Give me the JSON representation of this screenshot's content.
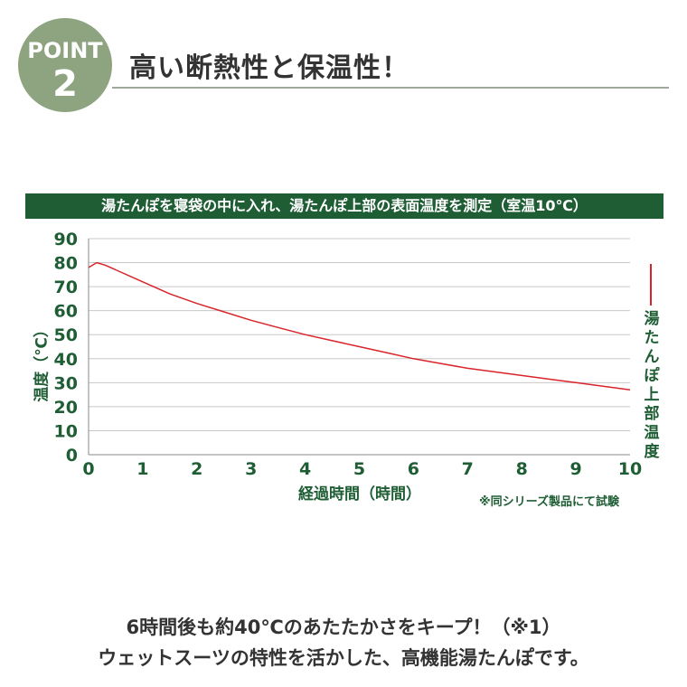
{
  "badge": {
    "label": "POINT",
    "number": "2"
  },
  "title": "高い断熱性と保温性！",
  "banner": "湯たんぽを寝袋の中に入れ、湯たんぽ上部の表面温度を測定（室温10℃）",
  "colors": {
    "green": "#1f5e35",
    "badge": "#8ea37f",
    "line": "#d9242a"
  },
  "chart_data": {
    "type": "line",
    "xlabel": "経過時間（時間）",
    "ylabel": "温度（℃）",
    "xlim": [
      0,
      10
    ],
    "ylim": [
      0,
      90
    ],
    "x_ticks": [
      "0",
      "1",
      "2",
      "3",
      "4",
      "5",
      "6",
      "7",
      "8",
      "9",
      "10"
    ],
    "y_ticks": [
      "0",
      "10",
      "20",
      "30",
      "40",
      "50",
      "60",
      "70",
      "80",
      "90"
    ],
    "grid": "horizontal",
    "legend_position": "right",
    "series": [
      {
        "name": "湯たんぽ上部温度",
        "x": [
          0,
          0.15,
          0.3,
          0.5,
          1,
          1.5,
          2,
          2.5,
          3,
          3.5,
          4,
          4.5,
          5,
          5.5,
          6,
          6.5,
          7,
          7.5,
          8,
          8.5,
          9,
          9.5,
          10
        ],
        "y": [
          78,
          80,
          79,
          77,
          72,
          67,
          63,
          59.5,
          56,
          53,
          50,
          47.5,
          45,
          42.5,
          40,
          38,
          36,
          34.5,
          33,
          31.5,
          30,
          28.5,
          27
        ]
      }
    ]
  },
  "note": "※同シリーズ製品にて試験",
  "footer": {
    "line1": "6時間後も約40℃のあたたかさをキープ！（※1）",
    "line2": "ウェットスーツの特性を活かした、高機能湯たんぽです。"
  }
}
